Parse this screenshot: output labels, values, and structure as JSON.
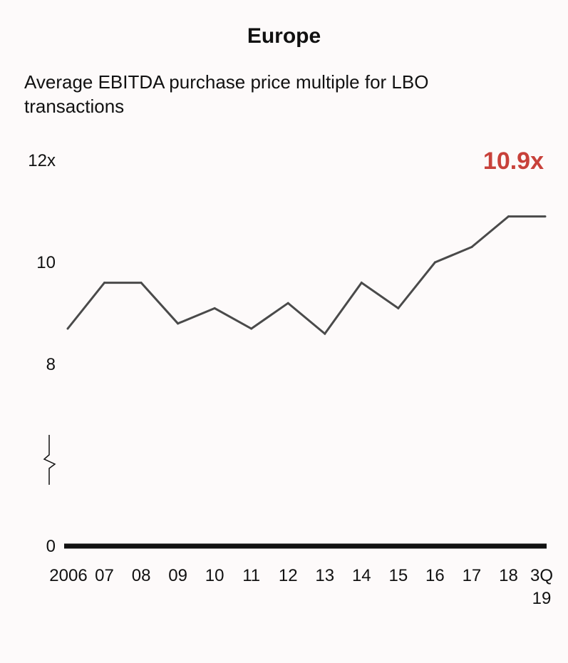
{
  "chart_data": {
    "type": "line",
    "title": "Europe",
    "subtitle": "Average EBITDA purchase price multiple for LBO transactions",
    "categories": [
      "2006",
      "07",
      "08",
      "09",
      "10",
      "11",
      "12",
      "13",
      "14",
      "15",
      "16",
      "17",
      "18",
      "3Q 19"
    ],
    "category_lines": [
      [
        "2006"
      ],
      [
        "07"
      ],
      [
        "08"
      ],
      [
        "09"
      ],
      [
        "10"
      ],
      [
        "11"
      ],
      [
        "12"
      ],
      [
        "13"
      ],
      [
        "14"
      ],
      [
        "15"
      ],
      [
        "16"
      ],
      [
        "17"
      ],
      [
        "18"
      ],
      [
        "3Q",
        "19"
      ]
    ],
    "series": [
      {
        "name": "Average EBITDA purchase price multiple",
        "values": [
          8.7,
          9.6,
          9.6,
          8.8,
          9.1,
          8.7,
          9.2,
          8.6,
          9.6,
          9.1,
          10.0,
          10.3,
          10.9,
          10.9
        ]
      }
    ],
    "y_ticks": [
      {
        "value": 12,
        "label": "12x"
      },
      {
        "value": 10,
        "label": "10"
      },
      {
        "value": 8,
        "label": "8"
      },
      {
        "value": 0,
        "label": "0"
      }
    ],
    "ylim": [
      8,
      12
    ],
    "axis_break": true,
    "callout": {
      "label": "10.9x",
      "color": "#c8413a"
    },
    "line_color": "#4a4a4a",
    "baseline_color": "#111111"
  }
}
